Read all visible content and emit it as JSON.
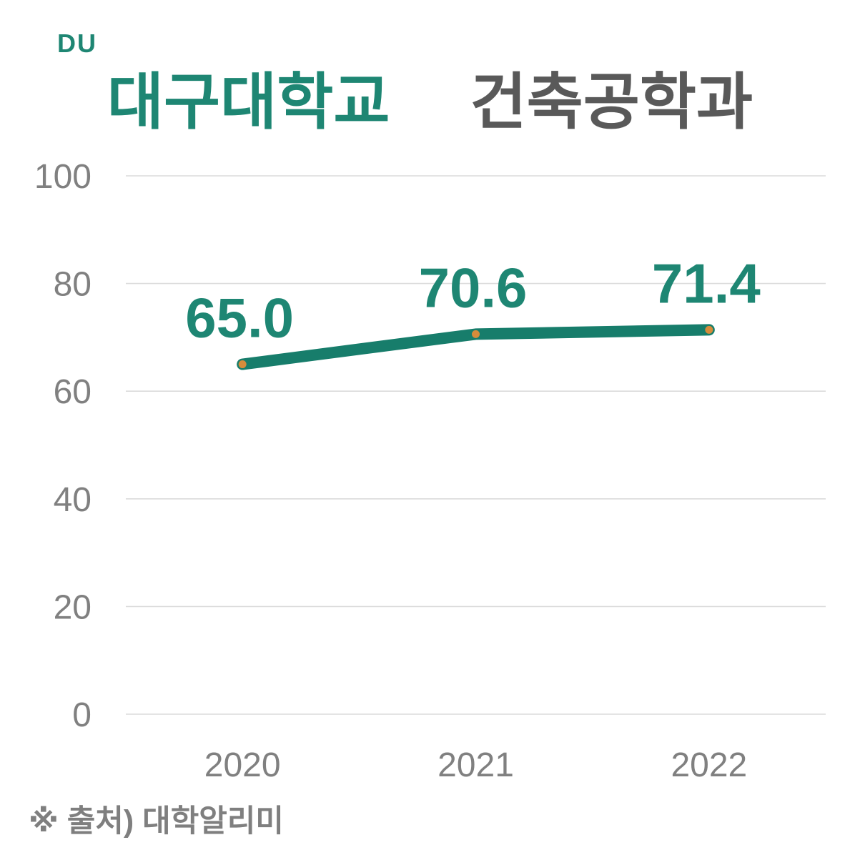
{
  "logo": {
    "text": "DU"
  },
  "header": {
    "title_university": "대구대학교",
    "title_department": "건축공학과"
  },
  "footer": {
    "source_note": "※ 출처) 대학알리미"
  },
  "colors": {
    "brand_teal": "#1E8673",
    "line_teal": "#177D6B",
    "marker_orange": "#D68C3B",
    "title_gray": "#595959",
    "axis_gray": "#808080",
    "gridline_gray": "#DBDBDB",
    "source_gray": "#7F7F7F"
  },
  "chart_data": {
    "type": "line",
    "title": "대구대학교 건축공학과",
    "categories": [
      "2020",
      "2021",
      "2022"
    ],
    "series": [
      {
        "name": "대구대학교 건축공학과",
        "values": [
          65.0,
          70.6,
          71.4
        ]
      }
    ],
    "value_labels": [
      "65.0",
      "70.6",
      "71.4"
    ],
    "ylim": [
      0,
      100
    ],
    "yticks": [
      0,
      20,
      40,
      60,
      80,
      100
    ],
    "grid": true,
    "legend_position": "none",
    "xlabel": "",
    "ylabel": ""
  }
}
